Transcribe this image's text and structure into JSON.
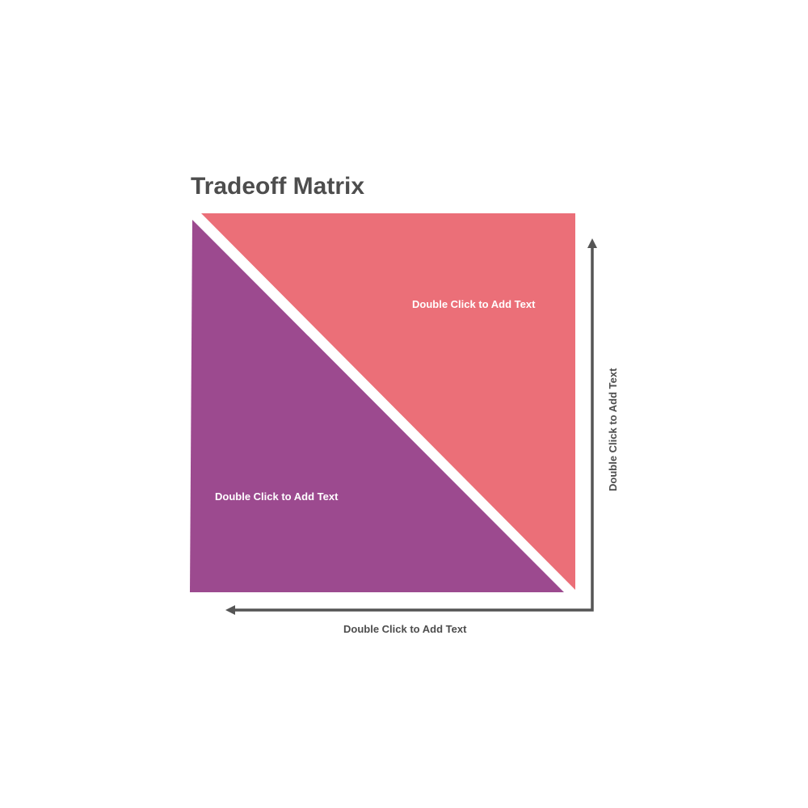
{
  "title": "Tradeoff Matrix",
  "colors": {
    "upper_triangle": "#eb6f78",
    "lower_triangle": "#9c4a8f",
    "axis": "#555555",
    "title": "#4d4d4d"
  },
  "upper_label": "Double Click to Add Text",
  "lower_label": "Double Click to Add Text",
  "x_axis_label": "Double Click to Add Text",
  "y_axis_label": "Double Click to Add Text"
}
